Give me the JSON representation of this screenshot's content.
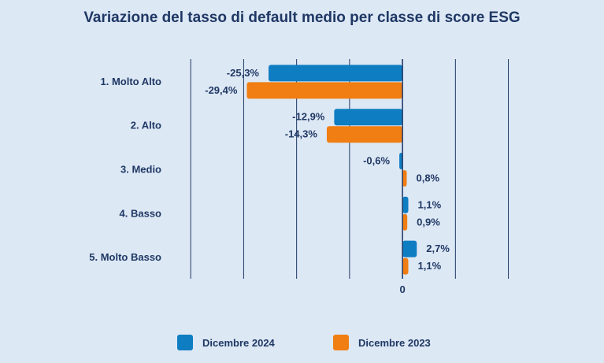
{
  "chart_data": {
    "type": "bar",
    "orientation": "horizontal",
    "title": "Variazione del tasso di default medio per classe di score ESG",
    "categories": [
      "1. Molto Alto",
      "2. Alto",
      "3. Medio",
      "4. Basso",
      "5. Molto Basso"
    ],
    "series": [
      {
        "name": "Dicembre 2024",
        "color": "#0f7dc2",
        "values": [
          -25.3,
          -12.9,
          -0.6,
          1.1,
          2.7
        ],
        "labels": [
          "-25,3%",
          "-12,9%",
          "-0,6%",
          "1,1%",
          "2,7%"
        ]
      },
      {
        "name": "Dicembre 2023",
        "color": "#f07e12",
        "values": [
          -29.4,
          -14.3,
          0.8,
          0.9,
          1.1
        ],
        "labels": [
          "-29,4%",
          "-14,3%",
          "0,8%",
          "0,9%",
          "1,1%"
        ]
      }
    ],
    "xlim": [
      -43.3,
      21.7
    ],
    "x_tick_labels": [
      {
        "value": 0,
        "label": "0"
      }
    ],
    "grid": true,
    "legend_position": "bottom"
  }
}
